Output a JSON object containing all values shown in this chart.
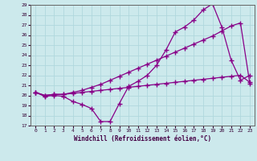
{
  "xlabel": "Windchill (Refroidissement éolien,°C)",
  "xlim": [
    -0.5,
    23.5
  ],
  "ylim": [
    17,
    29
  ],
  "yticks": [
    17,
    18,
    19,
    20,
    21,
    22,
    23,
    24,
    25,
    26,
    27,
    28,
    29
  ],
  "xticks": [
    0,
    1,
    2,
    3,
    4,
    5,
    6,
    7,
    8,
    9,
    10,
    11,
    12,
    13,
    14,
    15,
    16,
    17,
    18,
    19,
    20,
    21,
    22,
    23
  ],
  "bg_color": "#cce9ec",
  "grid_color": "#b0d8dd",
  "line_color": "#880088",
  "line1_x": [
    0,
    1,
    2,
    3,
    4,
    5,
    6,
    7,
    8,
    9,
    10,
    11,
    12,
    13,
    14,
    15,
    16,
    17,
    18,
    19,
    20,
    21,
    22,
    23
  ],
  "line1_y": [
    20.3,
    19.9,
    20.0,
    19.9,
    19.4,
    19.1,
    18.7,
    17.4,
    17.4,
    19.2,
    20.9,
    21.4,
    22.0,
    23.0,
    24.5,
    26.3,
    26.8,
    27.5,
    28.5,
    29.1,
    26.8,
    23.5,
    21.5,
    22.0
  ],
  "line2_x": [
    0,
    1,
    2,
    3,
    4,
    5,
    6,
    7,
    8,
    9,
    10,
    11,
    12,
    13,
    14,
    15,
    16,
    17,
    18,
    19,
    20,
    21,
    22,
    23
  ],
  "line2_y": [
    20.3,
    20.0,
    20.1,
    20.1,
    20.3,
    20.5,
    20.8,
    21.1,
    21.5,
    21.9,
    22.3,
    22.7,
    23.1,
    23.5,
    23.9,
    24.3,
    24.7,
    25.1,
    25.5,
    25.9,
    26.4,
    26.9,
    27.2,
    21.2
  ],
  "line3_x": [
    0,
    1,
    2,
    3,
    4,
    5,
    6,
    7,
    8,
    9,
    10,
    11,
    12,
    13,
    14,
    15,
    16,
    17,
    18,
    19,
    20,
    21,
    22,
    23
  ],
  "line3_y": [
    20.3,
    20.0,
    20.1,
    20.1,
    20.2,
    20.3,
    20.4,
    20.5,
    20.6,
    20.7,
    20.8,
    20.9,
    21.0,
    21.1,
    21.2,
    21.3,
    21.4,
    21.5,
    21.6,
    21.7,
    21.8,
    21.9,
    22.0,
    21.3
  ]
}
